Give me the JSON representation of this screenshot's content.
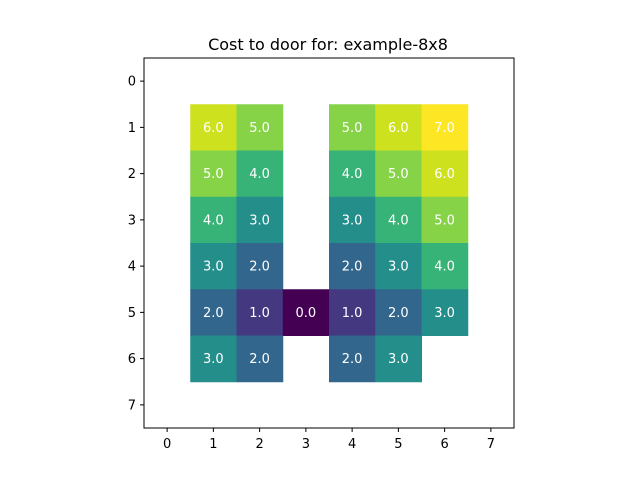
{
  "chart_data": {
    "type": "heatmap",
    "title": "Cost to door for: example-8x8",
    "xlabel": "",
    "ylabel": "",
    "x_ticks": [
      0,
      1,
      2,
      3,
      4,
      5,
      6,
      7
    ],
    "y_ticks": [
      0,
      1,
      2,
      3,
      4,
      5,
      6,
      7
    ],
    "colormap": "viridis",
    "vmin": 0.0,
    "vmax": 7.0,
    "grid": false,
    "matrix": [
      [
        null,
        null,
        null,
        null,
        null,
        null,
        null,
        null
      ],
      [
        null,
        6.0,
        5.0,
        null,
        5.0,
        6.0,
        7.0,
        null
      ],
      [
        null,
        5.0,
        4.0,
        null,
        4.0,
        5.0,
        6.0,
        null
      ],
      [
        null,
        4.0,
        3.0,
        null,
        3.0,
        4.0,
        5.0,
        null
      ],
      [
        null,
        3.0,
        2.0,
        null,
        2.0,
        3.0,
        4.0,
        null
      ],
      [
        null,
        2.0,
        1.0,
        0.0,
        1.0,
        2.0,
        3.0,
        null
      ],
      [
        null,
        3.0,
        2.0,
        null,
        2.0,
        3.0,
        null,
        null
      ],
      [
        null,
        null,
        null,
        null,
        null,
        null,
        null,
        null
      ]
    ]
  }
}
